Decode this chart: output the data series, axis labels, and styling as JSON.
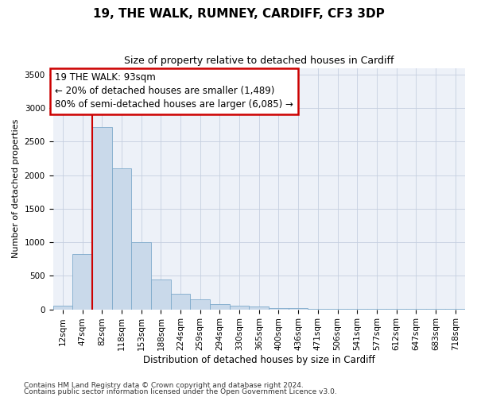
{
  "title": "19, THE WALK, RUMNEY, CARDIFF, CF3 3DP",
  "subtitle": "Size of property relative to detached houses in Cardiff",
  "xlabel": "Distribution of detached houses by size in Cardiff",
  "ylabel": "Number of detached properties",
  "footnote1": "Contains HM Land Registry data © Crown copyright and database right 2024.",
  "footnote2": "Contains public sector information licensed under the Open Government Licence v3.0.",
  "bar_labels": [
    "12sqm",
    "47sqm",
    "82sqm",
    "118sqm",
    "153sqm",
    "188sqm",
    "224sqm",
    "259sqm",
    "294sqm",
    "330sqm",
    "365sqm",
    "400sqm",
    "436sqm",
    "471sqm",
    "506sqm",
    "541sqm",
    "577sqm",
    "612sqm",
    "647sqm",
    "683sqm",
    "718sqm"
  ],
  "bar_values": [
    60,
    820,
    2720,
    2100,
    1000,
    450,
    230,
    155,
    75,
    55,
    40,
    20,
    15,
    10,
    8,
    5,
    4,
    3,
    2,
    2,
    2
  ],
  "bar_color": "#c9d9ea",
  "bar_edge_color": "#7eaacb",
  "grid_color": "#c5cfe0",
  "background_color": "#edf1f8",
  "annotation_line1": "19 THE WALK: 93sqm",
  "annotation_line2": "← 20% of detached houses are smaller (1,489)",
  "annotation_line3": "80% of semi-detached houses are larger (6,085) →",
  "annotation_box_color": "#cc0000",
  "vline_color": "#cc0000",
  "vline_pos": 1.5,
  "ylim": [
    0,
    3600
  ],
  "yticks": [
    0,
    500,
    1000,
    1500,
    2000,
    2500,
    3000,
    3500
  ],
  "title_fontsize": 11,
  "subtitle_fontsize": 9,
  "annotation_fontsize": 8.5,
  "xlabel_fontsize": 8.5,
  "ylabel_fontsize": 8,
  "tick_fontsize": 7.5,
  "footnote_fontsize": 6.5
}
